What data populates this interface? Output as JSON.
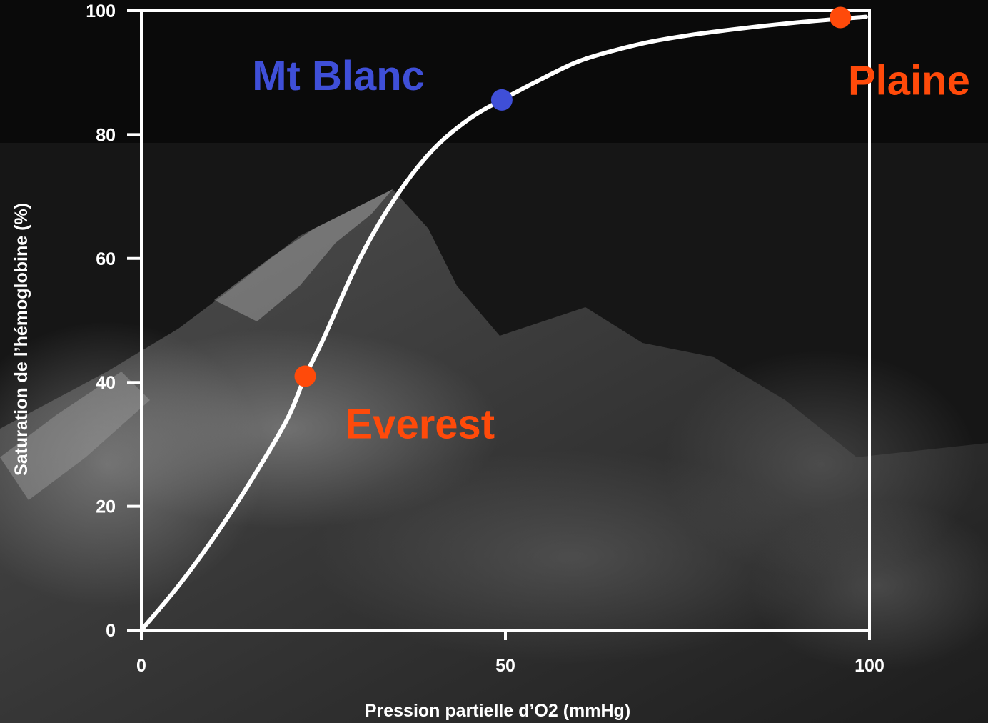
{
  "chart_data": {
    "type": "line",
    "xlabel": "Pression partielle d’O2 (mmHg)",
    "ylabel": "Saturation de l’hémoglobine (%)",
    "xlim": [
      0,
      100
    ],
    "ylim": [
      0,
      100
    ],
    "x_ticks": [
      {
        "value": 0,
        "label": "0"
      },
      {
        "value": 50,
        "label": "50"
      },
      {
        "value": 100,
        "label": "100"
      }
    ],
    "y_ticks": [
      {
        "value": 0,
        "label": "0"
      },
      {
        "value": 20,
        "label": "20"
      },
      {
        "value": 40,
        "label": "40"
      },
      {
        "value": 60,
        "label": "60"
      },
      {
        "value": 80,
        "label": "80"
      },
      {
        "value": 100,
        "label": "100"
      }
    ],
    "grid": false,
    "series": [
      {
        "color": "#ffffff",
        "x": [
          0,
          5,
          10,
          15,
          20,
          22.5,
          25,
          30,
          35,
          40,
          45,
          49.5,
          55,
          60,
          65,
          70,
          75,
          80,
          85,
          90,
          95,
          99.5
        ],
        "y": [
          0,
          7,
          15,
          24,
          34,
          41,
          47,
          60,
          70,
          77.5,
          82.5,
          85.6,
          89,
          91.8,
          93.6,
          95,
          96,
          96.8,
          97.5,
          98.1,
          98.6,
          99
        ]
      }
    ],
    "points": [
      {
        "label": "Everest",
        "x": 22.5,
        "y": 41,
        "color": "#ff4a0a",
        "label_position": "below-right"
      },
      {
        "label": "Mt Blanc",
        "x": 49.5,
        "y": 85.6,
        "color": "#3f4fd8",
        "label_position": "above-left"
      },
      {
        "label": "Plaine",
        "x": 96,
        "y": 98.9,
        "color": "#ff4a0a",
        "label_position": "below-right"
      }
    ],
    "background": "photograph of a mountain peak in clouds"
  }
}
